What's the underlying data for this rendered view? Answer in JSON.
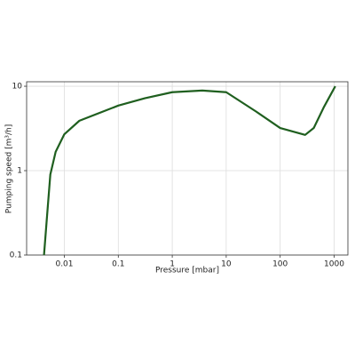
{
  "chart_data": {
    "type": "line",
    "x_label": "Pressure [mbar]",
    "y_label": "Pumping speed [m³/h]",
    "x": [
      0.0042,
      0.0048,
      0.0055,
      0.0069,
      0.01,
      0.019,
      0.1,
      0.31,
      1,
      3.6,
      10,
      36,
      100,
      290,
      420,
      640,
      1050
    ],
    "values": [
      0.1,
      0.3,
      0.9,
      1.67,
      2.7,
      3.9,
      5.9,
      7.2,
      8.5,
      8.9,
      8.5,
      5,
      3.2,
      2.65,
      3.2,
      5.6,
      10
    ],
    "color": "#1f5f1f",
    "xscale": "log",
    "yscale": "log",
    "xlim": [
      0.002,
      1800
    ],
    "ylim": [
      0.1,
      11.3
    ],
    "xticks": [
      0.01,
      0.1,
      1,
      10,
      100,
      1000
    ],
    "yticks": [
      0.1,
      1,
      10
    ],
    "grid": true
  }
}
